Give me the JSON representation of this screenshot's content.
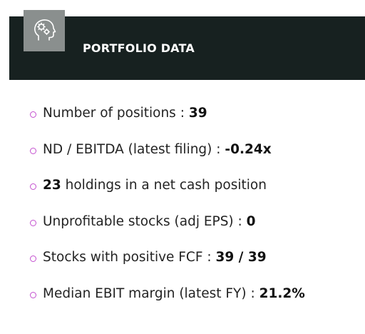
{
  "header": {
    "title": "PORTFOLIO DATA",
    "icon": "ai-head-gears-icon",
    "background_color": "#172120",
    "icon_box_color": "#8a8f8e"
  },
  "stats": [
    {
      "label": "Number of positions : ",
      "value": "39"
    },
    {
      "label": "ND / EBITDA (latest filing) : ",
      "value": "-0.24x"
    },
    {
      "value": "23",
      "suffix": " holdings in a net cash position"
    },
    {
      "label": "Unprofitable stocks (adj EPS) : ",
      "value": "0"
    },
    {
      "label": "Stocks with positive FCF : ",
      "value": "39 / 39"
    },
    {
      "label": "Median EBIT margin (latest FY) : ",
      "value": "21.2%"
    }
  ],
  "colors": {
    "bullet": "#c34fcf",
    "text": "#232323"
  }
}
